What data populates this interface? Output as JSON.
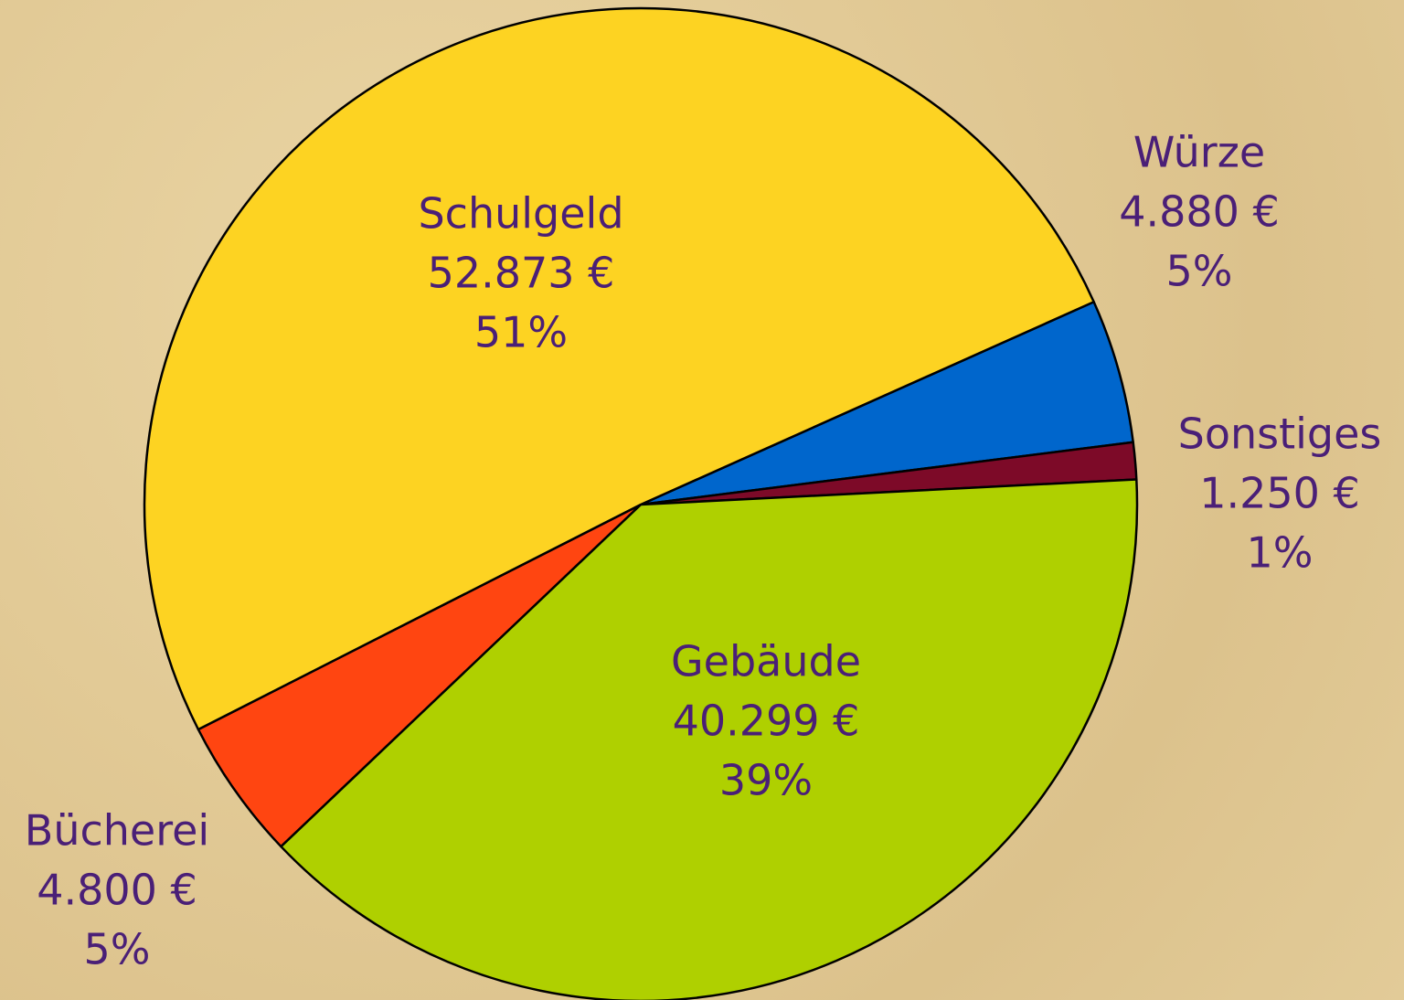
{
  "chart_data": {
    "type": "pie",
    "categories": [
      "Würze",
      "Sonstiges",
      "Gebäude",
      "Bücherei",
      "Schulgeld"
    ],
    "values": [
      4880,
      1250,
      40299,
      4800,
      52873
    ],
    "value_labels": [
      "4.880 €",
      "1.250 €",
      "40.299 €",
      "4.800 €",
      "52.873 €"
    ],
    "percent_labels": [
      "5%",
      "1%",
      "39%",
      "5%",
      "51%"
    ],
    "colors": [
      "#0066cc",
      "#7d0a28",
      "#afd000",
      "#ff4511",
      "#fdd322"
    ]
  }
}
